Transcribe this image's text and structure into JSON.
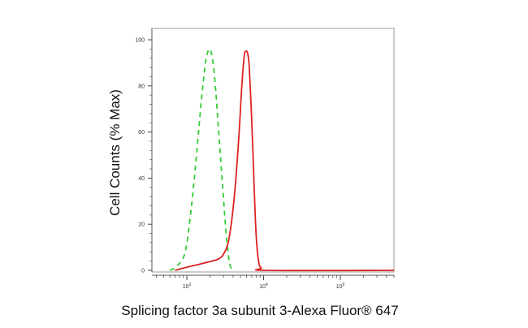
{
  "chart_data": {
    "type": "line",
    "title": "",
    "xlabel": "Splicing factor 3a subunit 3-Alexa Fluor® 647",
    "ylabel": "Cell Counts (% Max)",
    "x_scale": "log",
    "xlim": [
      350,
      500000
    ],
    "ylim": [
      0,
      100
    ],
    "grid": false,
    "legend": "none",
    "y_ticks": [
      "0",
      "20",
      "40",
      "60",
      "80",
      "100"
    ],
    "x_ticks": [
      {
        "base": "10",
        "exp": "3",
        "value": 1000
      },
      {
        "base": "10",
        "exp": "4",
        "value": 10000
      },
      {
        "base": "10",
        "exp": "5",
        "value": 100000
      }
    ],
    "series": [
      {
        "color": "#33cc33",
        "style": "dashed",
        "points": [
          [
            600,
            0
          ],
          [
            750,
            2
          ],
          [
            950,
            8
          ],
          [
            1150,
            28
          ],
          [
            1350,
            52
          ],
          [
            1550,
            74
          ],
          [
            1750,
            90
          ],
          [
            1950,
            96
          ],
          [
            2150,
            92
          ],
          [
            2350,
            80
          ],
          [
            2600,
            60
          ],
          [
            2900,
            38
          ],
          [
            3250,
            16
          ],
          [
            3600,
            3
          ],
          [
            4000,
            0
          ]
        ]
      },
      {
        "color": "#dd2222",
        "style": "solid",
        "points": [
          [
            700,
            0
          ],
          [
            900,
            1
          ],
          [
            1200,
            2
          ],
          [
            1600,
            3
          ],
          [
            2100,
            4
          ],
          [
            2600,
            5
          ],
          [
            3000,
            7
          ],
          [
            3500,
            13
          ],
          [
            4100,
            30
          ],
          [
            4700,
            55
          ],
          [
            5200,
            80
          ],
          [
            5600,
            93
          ],
          [
            5900,
            95
          ],
          [
            6200,
            94
          ],
          [
            6500,
            88
          ],
          [
            7000,
            65
          ],
          [
            7500,
            38
          ],
          [
            8000,
            15
          ],
          [
            8600,
            4
          ],
          [
            9300,
            1
          ],
          [
            11000,
            0
          ],
          [
            500000,
            0
          ]
        ]
      }
    ]
  }
}
